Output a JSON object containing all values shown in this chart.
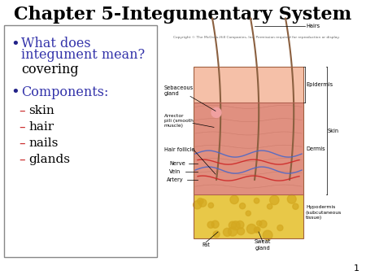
{
  "title": "Chapter 5-Integumentary System",
  "title_fontsize": 16,
  "title_color": "#000000",
  "background_color": "#ffffff",
  "bullet1_line1": "What does",
  "bullet1_line2": "integument mean?",
  "bullet1_color": "#3333aa",
  "bullet1_fontsize": 11.5,
  "answer_text": "covering",
  "answer_color": "#000000",
  "answer_fontsize": 11.5,
  "bullet2_text": "Components:",
  "bullet2_color": "#3333aa",
  "bullet2_fontsize": 11.5,
  "sub_items": [
    "skin",
    "hair",
    "nails",
    "glands"
  ],
  "sub_item_color": "#000000",
  "sub_item_fontsize": 11,
  "dash_color": "#cc3333",
  "box_edge_color": "#888888",
  "page_number": "1",
  "page_number_color": "#000000",
  "page_number_fontsize": 8,
  "bullet_color": "#000000",
  "bullet_symbol": "•",
  "epi_color": "#f0b8a0",
  "derm_color": "#d9907a",
  "hypo_color": "#e8c848",
  "skin_outline_color": "#c08060",
  "hair_color": "#8b6040",
  "label_fontsize": 4.8,
  "copyright_text": "Copyright © The McGraw-Hill Companies, Inc. Permission required for reproduction or display."
}
